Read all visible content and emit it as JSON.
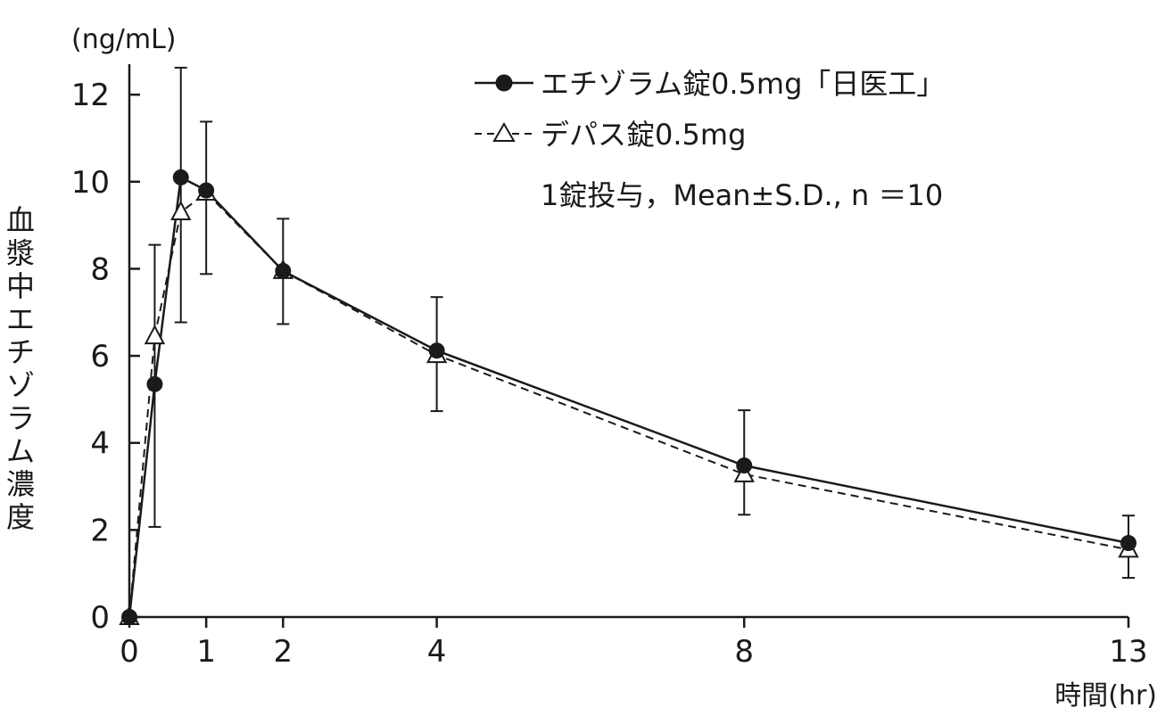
{
  "chart_data": {
    "type": "line",
    "x": [
      0,
      0.33,
      0.67,
      1,
      2,
      4,
      8,
      13
    ],
    "x_ticks": [
      0,
      1,
      2,
      4,
      8,
      13
    ],
    "y_ticks": [
      0,
      2,
      4,
      6,
      8,
      10,
      12
    ],
    "xlim": [
      0,
      13
    ],
    "ylim": [
      0,
      12.7
    ],
    "xlabel": "時間(hr)",
    "ylabel": "血漿中エチゾラム濃度",
    "yunit": "(ng/mL)",
    "annotation": "1錠投与，Mean±S.D., n ＝10",
    "grid": false,
    "legend_position": "top-right",
    "series": [
      {
        "name": "エチゾラム錠0.5mg「日医工」",
        "marker": "filled-circle",
        "line_style": "solid",
        "values": [
          0,
          5.35,
          10.1,
          9.8,
          7.95,
          6.12,
          3.48,
          1.7
        ],
        "sd_upper": [
          0,
          8.55,
          12.62,
          11.38,
          9.15,
          7.35,
          4.75,
          2.33
        ],
        "sd_lower": [
          0,
          2.07,
          6.77,
          7.88,
          6.73,
          4.73,
          2.35,
          0.9
        ]
      },
      {
        "name": "デパス錠0.5mg",
        "marker": "open-triangle",
        "line_style": "dashed",
        "values": [
          0,
          6.45,
          9.3,
          9.75,
          7.95,
          6.02,
          3.28,
          1.55
        ]
      }
    ]
  },
  "colors": {
    "ink": "#1a1a1a",
    "background": "#ffffff"
  }
}
